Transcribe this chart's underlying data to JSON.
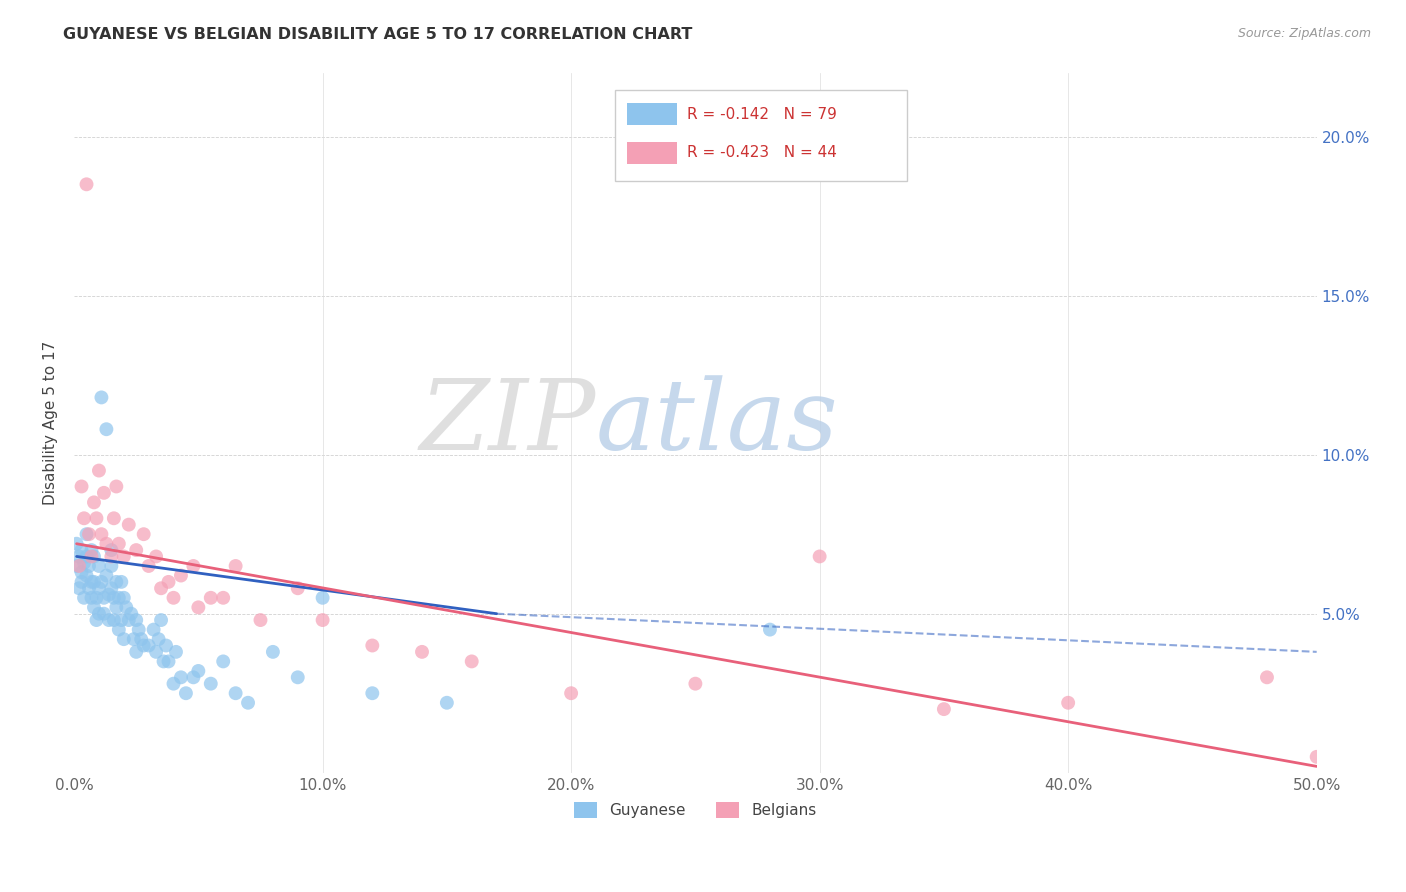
{
  "title": "GUYANESE VS BELGIAN DISABILITY AGE 5 TO 17 CORRELATION CHART",
  "source": "Source: ZipAtlas.com",
  "ylabel": "Disability Age 5 to 17",
  "legend_label1": "Guyanese",
  "legend_label2": "Belgians",
  "r1": "-0.142",
  "n1": "79",
  "r2": "-0.423",
  "n2": "44",
  "color1": "#8EC4ED",
  "color2": "#F4A0B5",
  "trendline1_color": "#3060C0",
  "trendline2_color": "#E8607A",
  "xlim": [
    0.0,
    0.5
  ],
  "ylim": [
    0.0,
    0.22
  ],
  "xticks": [
    0.0,
    0.1,
    0.2,
    0.3,
    0.4,
    0.5
  ],
  "yticks": [
    0.0,
    0.05,
    0.1,
    0.15,
    0.2
  ],
  "xticklabels": [
    "0.0%",
    "10.0%",
    "20.0%",
    "30.0%",
    "40.0%",
    "50.0%"
  ],
  "watermark_zip": "ZIP",
  "watermark_atlas": "atlas",
  "guyanese_x": [
    0.001,
    0.001,
    0.002,
    0.002,
    0.003,
    0.003,
    0.003,
    0.004,
    0.004,
    0.005,
    0.005,
    0.005,
    0.006,
    0.006,
    0.007,
    0.007,
    0.007,
    0.008,
    0.008,
    0.008,
    0.009,
    0.009,
    0.01,
    0.01,
    0.01,
    0.011,
    0.011,
    0.012,
    0.012,
    0.013,
    0.013,
    0.014,
    0.014,
    0.015,
    0.015,
    0.015,
    0.016,
    0.016,
    0.017,
    0.017,
    0.018,
    0.018,
    0.019,
    0.019,
    0.02,
    0.02,
    0.021,
    0.022,
    0.023,
    0.024,
    0.025,
    0.025,
    0.026,
    0.027,
    0.028,
    0.03,
    0.032,
    0.033,
    0.034,
    0.035,
    0.036,
    0.037,
    0.038,
    0.04,
    0.041,
    0.043,
    0.045,
    0.048,
    0.05,
    0.055,
    0.06,
    0.065,
    0.07,
    0.08,
    0.09,
    0.1,
    0.12,
    0.15,
    0.28
  ],
  "guyanese_y": [
    0.065,
    0.072,
    0.058,
    0.068,
    0.06,
    0.063,
    0.07,
    0.055,
    0.066,
    0.068,
    0.062,
    0.075,
    0.058,
    0.065,
    0.06,
    0.055,
    0.07,
    0.052,
    0.06,
    0.068,
    0.048,
    0.055,
    0.05,
    0.058,
    0.065,
    0.06,
    0.118,
    0.055,
    0.05,
    0.062,
    0.108,
    0.048,
    0.056,
    0.065,
    0.058,
    0.07,
    0.055,
    0.048,
    0.06,
    0.052,
    0.045,
    0.055,
    0.048,
    0.06,
    0.055,
    0.042,
    0.052,
    0.048,
    0.05,
    0.042,
    0.038,
    0.048,
    0.045,
    0.042,
    0.04,
    0.04,
    0.045,
    0.038,
    0.042,
    0.048,
    0.035,
    0.04,
    0.035,
    0.028,
    0.038,
    0.03,
    0.025,
    0.03,
    0.032,
    0.028,
    0.035,
    0.025,
    0.022,
    0.038,
    0.03,
    0.055,
    0.025,
    0.022,
    0.045
  ],
  "belgians_x": [
    0.002,
    0.003,
    0.004,
    0.005,
    0.006,
    0.007,
    0.008,
    0.009,
    0.01,
    0.011,
    0.012,
    0.013,
    0.015,
    0.016,
    0.017,
    0.018,
    0.02,
    0.022,
    0.025,
    0.028,
    0.03,
    0.033,
    0.035,
    0.038,
    0.04,
    0.043,
    0.048,
    0.05,
    0.055,
    0.06,
    0.065,
    0.075,
    0.09,
    0.1,
    0.12,
    0.14,
    0.16,
    0.2,
    0.25,
    0.3,
    0.35,
    0.4,
    0.48,
    0.5
  ],
  "belgians_y": [
    0.065,
    0.09,
    0.08,
    0.185,
    0.075,
    0.068,
    0.085,
    0.08,
    0.095,
    0.075,
    0.088,
    0.072,
    0.068,
    0.08,
    0.09,
    0.072,
    0.068,
    0.078,
    0.07,
    0.075,
    0.065,
    0.068,
    0.058,
    0.06,
    0.055,
    0.062,
    0.065,
    0.052,
    0.055,
    0.055,
    0.065,
    0.048,
    0.058,
    0.048,
    0.04,
    0.038,
    0.035,
    0.025,
    0.028,
    0.068,
    0.02,
    0.022,
    0.03,
    0.005
  ],
  "trendline1_x_start": 0.001,
  "trendline1_x_solid_end": 0.17,
  "trendline1_x_dash_end": 0.5,
  "trendline1_y_start": 0.068,
  "trendline1_y_solid_end": 0.05,
  "trendline1_y_dash_end": 0.038,
  "trendline2_x_start": 0.001,
  "trendline2_x_end": 0.5,
  "trendline2_y_start": 0.072,
  "trendline2_y_end": 0.002
}
